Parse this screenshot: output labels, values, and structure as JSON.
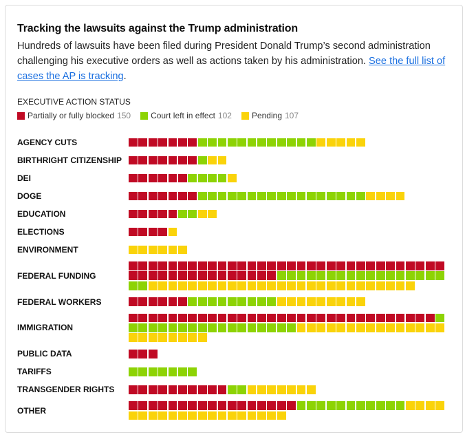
{
  "title": "Tracking the lawsuits against the Trump administration",
  "description": "Hundreds of lawsuits have been filed during President Donald Trump’s second administration challenging his executive orders as well as actions taken by his administration. ",
  "link_text": "See the full list of cases the AP is tracking",
  "description_end": ".",
  "chart_data": {
    "type": "waffle",
    "legend_title": "EXECUTIVE ACTION STATUS",
    "series": [
      {
        "key": "blocked",
        "name": "Partially or fully blocked",
        "total": "150",
        "color": "#c00a24"
      },
      {
        "key": "effect",
        "name": "Court left in effect",
        "total": "102",
        "color": "#8dd304"
      },
      {
        "key": "pending",
        "name": "Pending",
        "total": "107",
        "color": "#fad30a"
      }
    ],
    "units_per_row": 32,
    "categories": [
      {
        "label": "AGENCY CUTS",
        "blocked": 7,
        "effect": 12,
        "pending": 5
      },
      {
        "label": "BIRTHRIGHT CITIZENSHIP",
        "blocked": 7,
        "effect": 1,
        "pending": 2
      },
      {
        "label": "DEI",
        "blocked": 6,
        "effect": 4,
        "pending": 1
      },
      {
        "label": "DOGE",
        "blocked": 7,
        "effect": 17,
        "pending": 4
      },
      {
        "label": "EDUCATION",
        "blocked": 5,
        "effect": 2,
        "pending": 2
      },
      {
        "label": "ELECTIONS",
        "blocked": 4,
        "effect": 0,
        "pending": 1
      },
      {
        "label": "ENVIRONMENT",
        "blocked": 0,
        "effect": 0,
        "pending": 6
      },
      {
        "label": "FEDERAL FUNDING",
        "blocked": 47,
        "effect": 19,
        "pending": 27
      },
      {
        "label": "FEDERAL WORKERS",
        "blocked": 6,
        "effect": 9,
        "pending": 9
      },
      {
        "label": "IMMIGRATION",
        "blocked": 31,
        "effect": 18,
        "pending": 23
      },
      {
        "label": "PUBLIC DATA",
        "blocked": 3,
        "effect": 0,
        "pending": 0
      },
      {
        "label": "TARIFFS",
        "blocked": 0,
        "effect": 7,
        "pending": 0
      },
      {
        "label": "TRANSGENDER RIGHTS",
        "blocked": 10,
        "effect": 2,
        "pending": 7
      },
      {
        "label": "OTHER",
        "blocked": 17,
        "effect": 11,
        "pending": 20
      }
    ]
  }
}
